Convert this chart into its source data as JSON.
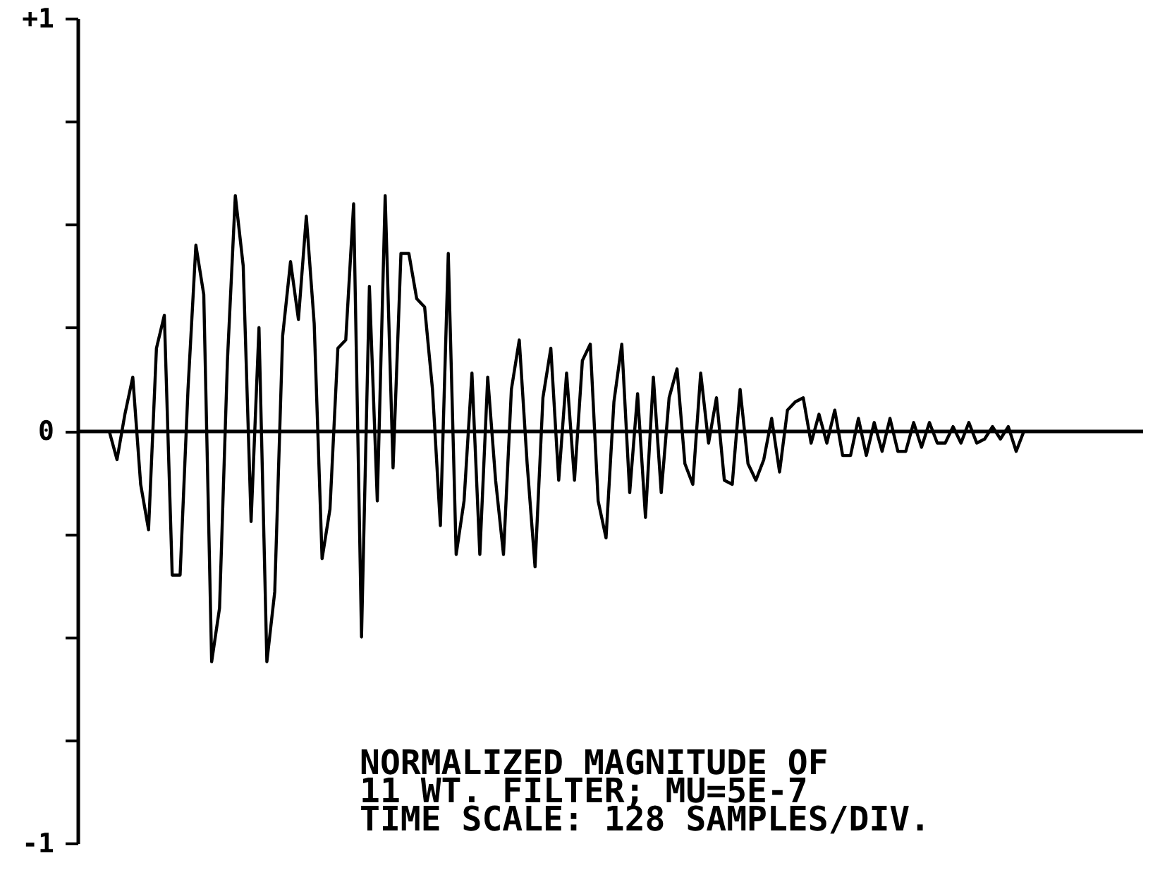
{
  "chart_data": {
    "type": "line",
    "categories": [
      null,
      null,
      null,
      null,
      null,
      null,
      null,
      null,
      null,
      null,
      null,
      null,
      null,
      null,
      null,
      null,
      null,
      null,
      null,
      null,
      null,
      null,
      null,
      null,
      null,
      null,
      null,
      null,
      null,
      null,
      null,
      null,
      null,
      null,
      null,
      null,
      null,
      null,
      null,
      null,
      null,
      null,
      null,
      null,
      null,
      null,
      null,
      null,
      null,
      null,
      null,
      null,
      null,
      null,
      null,
      null,
      null,
      null,
      null,
      null,
      null,
      null,
      null,
      null,
      null,
      null,
      null,
      null,
      null,
      null,
      null,
      null,
      null,
      null,
      null,
      null,
      null,
      null,
      null,
      null,
      null,
      null,
      null,
      null,
      null,
      null,
      null,
      null,
      null,
      null,
      null,
      null,
      null,
      null,
      null,
      null,
      null,
      null,
      null,
      null,
      null,
      null,
      null,
      null,
      null,
      null,
      null,
      null,
      null,
      null,
      null,
      null,
      null,
      null,
      null,
      null,
      null,
      null,
      null,
      null,
      null,
      null,
      null,
      null,
      null,
      null,
      null,
      null,
      null,
      null,
      null,
      null,
      null,
      null,
      null,
      null
    ],
    "series": [
      {
        "color": "#000000",
        "values": [
          null,
          null,
          null,
          null,
          0,
          -0.07,
          0.04,
          0.13,
          -0.13,
          -0.24,
          0.2,
          0.28,
          -0.35,
          -0.35,
          0.1,
          0.45,
          0.33,
          -0.56,
          -0.43,
          0.17,
          0.57,
          0.4,
          -0.22,
          0.25,
          -0.56,
          -0.39,
          0.23,
          0.41,
          0.27,
          0.52,
          0.26,
          -0.31,
          -0.19,
          0.2,
          0.22,
          0.55,
          -0.5,
          0.35,
          -0.17,
          0.57,
          -0.09,
          0.43,
          0.43,
          0.32,
          0.3,
          0.1,
          -0.23,
          0.43,
          -0.3,
          -0.17,
          0.14,
          -0.3,
          0.13,
          -0.12,
          -0.3,
          0.1,
          0.22,
          -0.08,
          -0.33,
          0.08,
          0.2,
          -0.12,
          0.14,
          -0.12,
          0.17,
          0.21,
          -0.17,
          -0.26,
          0.07,
          0.21,
          -0.15,
          0.09,
          -0.21,
          0.13,
          -0.15,
          0.08,
          0.15,
          -0.08,
          -0.13,
          0.14,
          -0.03,
          0.08,
          -0.12,
          -0.13,
          0.1,
          -0.08,
          -0.12,
          -0.07,
          0.03,
          -0.1,
          0.05,
          0.07,
          0.08,
          -0.03,
          0.04,
          -0.03,
          0.05,
          -0.06,
          -0.06,
          0.03,
          -0.06,
          0.02,
          -0.05,
          0.03,
          -0.05,
          -0.05,
          0.02,
          -0.04,
          0.02,
          -0.03,
          -0.03,
          0.01,
          -0.03,
          0.02,
          -0.03,
          -0.02,
          0.01,
          -0.02,
          0.01,
          -0.05,
          0,
          null,
          null,
          null,
          null,
          null,
          null,
          null,
          null,
          null,
          null,
          null,
          null,
          null,
          null,
          null
        ]
      }
    ],
    "ylim": [
      -1,
      1
    ],
    "yticks": [
      {
        "value": 1,
        "label": "+1"
      },
      {
        "value": 0.75,
        "label": null
      },
      {
        "value": 0.5,
        "label": null
      },
      {
        "value": 0.25,
        "label": null
      },
      0,
      {
        "value": -0.25,
        "label": null
      },
      {
        "value": -0.5,
        "label": null
      },
      {
        "value": -0.75,
        "label": null
      },
      {
        "value": -1,
        "label": "-1"
      }
    ],
    "tick_labels": "y",
    "annotations": [
      "   NORMALIZED MAGNITUDE OF",
      "11 WT. FILTER; MU=5E-7",
      "TIME SCALE: 128 SAMPLES/DIV."
    ]
  }
}
